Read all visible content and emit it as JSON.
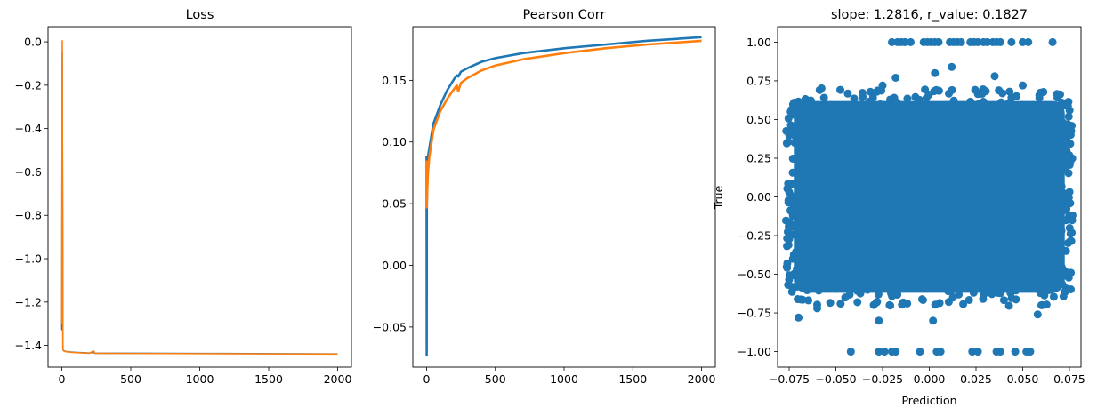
{
  "chart_data": [
    {
      "type": "line",
      "title": "Loss",
      "xlabel": "",
      "ylabel": "",
      "xlim": [
        -100,
        2100
      ],
      "ylim": [
        -1.5,
        0.07
      ],
      "xticks": [
        0,
        500,
        1000,
        1500,
        2000
      ],
      "xtick_labels": [
        "0",
        "500",
        "1000",
        "1500",
        "2000"
      ],
      "yticks": [
        0.0,
        -0.2,
        -0.4,
        -0.6,
        -0.8,
        -1.0,
        -1.2,
        -1.4
      ],
      "ytick_labels": [
        "0.0",
        "−0.2",
        "−0.4",
        "−0.6",
        "−0.8",
        "−1.0",
        "−1.2",
        "−1.4"
      ],
      "grid": false,
      "series": [
        {
          "color": "#1f77b4",
          "x": [
            0,
            3,
            8,
            15,
            30,
            60,
            100,
            200,
            230,
            240,
            500,
            1000,
            1500,
            2000
          ],
          "y": [
            -1.33,
            -0.05,
            -1.42,
            -1.425,
            -1.428,
            -1.43,
            -1.432,
            -1.435,
            -1.432,
            -1.436,
            -1.436,
            -1.437,
            -1.438,
            -1.439
          ]
        },
        {
          "color": "#ff7f0e",
          "x": [
            0,
            3,
            8,
            15,
            30,
            60,
            100,
            200,
            230,
            240,
            500,
            1000,
            1500,
            2000
          ],
          "y": [
            -1.3,
            0.005,
            -1.42,
            -1.426,
            -1.429,
            -1.431,
            -1.433,
            -1.436,
            -1.425,
            -1.436,
            -1.437,
            -1.438,
            -1.439,
            -1.44
          ]
        }
      ]
    },
    {
      "type": "line",
      "title": "Pearson Corr",
      "xlabel": "",
      "ylabel": "",
      "xlim": [
        -100,
        2100
      ],
      "ylim": [
        -0.0825,
        0.1935
      ],
      "xticks": [
        0,
        500,
        1000,
        1500,
        2000
      ],
      "xtick_labels": [
        "0",
        "500",
        "1000",
        "1500",
        "2000"
      ],
      "yticks": [
        -0.05,
        0.0,
        0.05,
        0.1,
        0.15
      ],
      "ytick_labels": [
        "−0.05",
        "0.00",
        "0.05",
        "0.10",
        "0.15"
      ],
      "grid": false,
      "series": [
        {
          "color": "#1f77b4",
          "x": [
            0,
            1,
            2,
            5,
            10,
            20,
            50,
            100,
            150,
            200,
            220,
            230,
            250,
            300,
            400,
            500,
            700,
            1000,
            1300,
            1600,
            2000
          ],
          "y": [
            0.089,
            -0.073,
            0.045,
            0.078,
            0.088,
            0.095,
            0.115,
            0.13,
            0.142,
            0.151,
            0.154,
            0.153,
            0.157,
            0.16,
            0.165,
            0.168,
            0.172,
            0.176,
            0.179,
            0.182,
            0.185
          ]
        },
        {
          "color": "#ff7f0e",
          "x": [
            0,
            1,
            2,
            5,
            10,
            20,
            50,
            100,
            150,
            200,
            220,
            230,
            250,
            300,
            400,
            500,
            700,
            1000,
            1300,
            1600,
            2000
          ],
          "y": [
            0.085,
            0.047,
            0.05,
            0.06,
            0.075,
            0.088,
            0.11,
            0.125,
            0.135,
            0.143,
            0.146,
            0.141,
            0.148,
            0.152,
            0.158,
            0.162,
            0.167,
            0.172,
            0.176,
            0.179,
            0.182
          ]
        }
      ]
    },
    {
      "type": "scatter",
      "title": "slope: 1.2816, r_value: 0.1827",
      "xlabel": "Prediction",
      "ylabel": "True",
      "xlim": [
        -0.0812,
        0.0812
      ],
      "ylim": [
        -1.1,
        1.1
      ],
      "xticks": [
        -0.075,
        -0.05,
        -0.025,
        0.0,
        0.025,
        0.05,
        0.075
      ],
      "xtick_labels": [
        "−0.075",
        "−0.050",
        "−0.025",
        "0.000",
        "0.025",
        "0.050",
        "0.075"
      ],
      "yticks": [
        -1.0,
        -0.75,
        -0.5,
        -0.25,
        0.0,
        0.25,
        0.5,
        0.75,
        1.0
      ],
      "ytick_labels": [
        "−1.00",
        "−0.75",
        "−0.50",
        "−0.25",
        "0.00",
        "0.25",
        "0.50",
        "0.75",
        "1.00"
      ],
      "grid": false,
      "marker_color": "#1f77b4",
      "dense_region": {
        "x": [
          -0.0725,
          0.0725
        ],
        "y": [
          -0.62,
          0.62
        ]
      },
      "series": [
        {
          "name": "",
          "points": [
            [
              -0.02,
              1.0
            ],
            [
              -0.017,
              1.0
            ],
            [
              -0.015,
              1.0
            ],
            [
              -0.013,
              1.0
            ],
            [
              -0.01,
              1.0
            ],
            [
              -0.003,
              1.0
            ],
            [
              -0.001,
              1.0
            ],
            [
              0.001,
              1.0
            ],
            [
              0.003,
              1.0
            ],
            [
              0.005,
              1.0
            ],
            [
              0.011,
              1.0
            ],
            [
              0.013,
              1.0
            ],
            [
              0.015,
              1.0
            ],
            [
              0.017,
              1.0
            ],
            [
              0.022,
              1.0
            ],
            [
              0.024,
              1.0
            ],
            [
              0.026,
              1.0
            ],
            [
              0.029,
              1.0
            ],
            [
              0.031,
              1.0
            ],
            [
              0.034,
              1.0
            ],
            [
              0.036,
              1.0
            ],
            [
              0.038,
              1.0
            ],
            [
              0.044,
              1.0
            ],
            [
              0.05,
              1.0
            ],
            [
              0.053,
              1.0
            ],
            [
              0.066,
              1.0
            ],
            [
              -0.042,
              -1.0
            ],
            [
              -0.027,
              -1.0
            ],
            [
              -0.024,
              -1.0
            ],
            [
              -0.02,
              -1.0
            ],
            [
              -0.018,
              -1.0
            ],
            [
              -0.005,
              -1.0
            ],
            [
              0.004,
              -1.0
            ],
            [
              0.006,
              -1.0
            ],
            [
              0.023,
              -1.0
            ],
            [
              0.026,
              -1.0
            ],
            [
              0.036,
              -1.0
            ],
            [
              0.038,
              -1.0
            ],
            [
              0.046,
              -1.0
            ],
            [
              0.052,
              -1.0
            ],
            [
              0.054,
              -1.0
            ],
            [
              -0.07,
              -0.78
            ],
            [
              -0.027,
              -0.8
            ],
            [
              0.002,
              -0.8
            ],
            [
              -0.06,
              -0.72
            ],
            [
              0.058,
              -0.76
            ],
            [
              -0.045,
              -0.65
            ],
            [
              0.06,
              -0.7
            ],
            [
              -0.066,
              -0.55
            ],
            [
              0.065,
              -0.6
            ],
            [
              0.012,
              0.84
            ],
            [
              0.003,
              0.8
            ],
            [
              -0.018,
              0.77
            ],
            [
              0.035,
              0.78
            ],
            [
              -0.025,
              0.72
            ],
            [
              0.05,
              0.72
            ],
            [
              -0.07,
              0.48
            ],
            [
              0.068,
              0.45
            ],
            [
              -0.062,
              0.42
            ],
            [
              -0.072,
              0.35
            ],
            [
              0.07,
              0.3
            ],
            [
              0.071,
              -0.35
            ],
            [
              -0.073,
              -0.4
            ]
          ]
        }
      ]
    }
  ]
}
